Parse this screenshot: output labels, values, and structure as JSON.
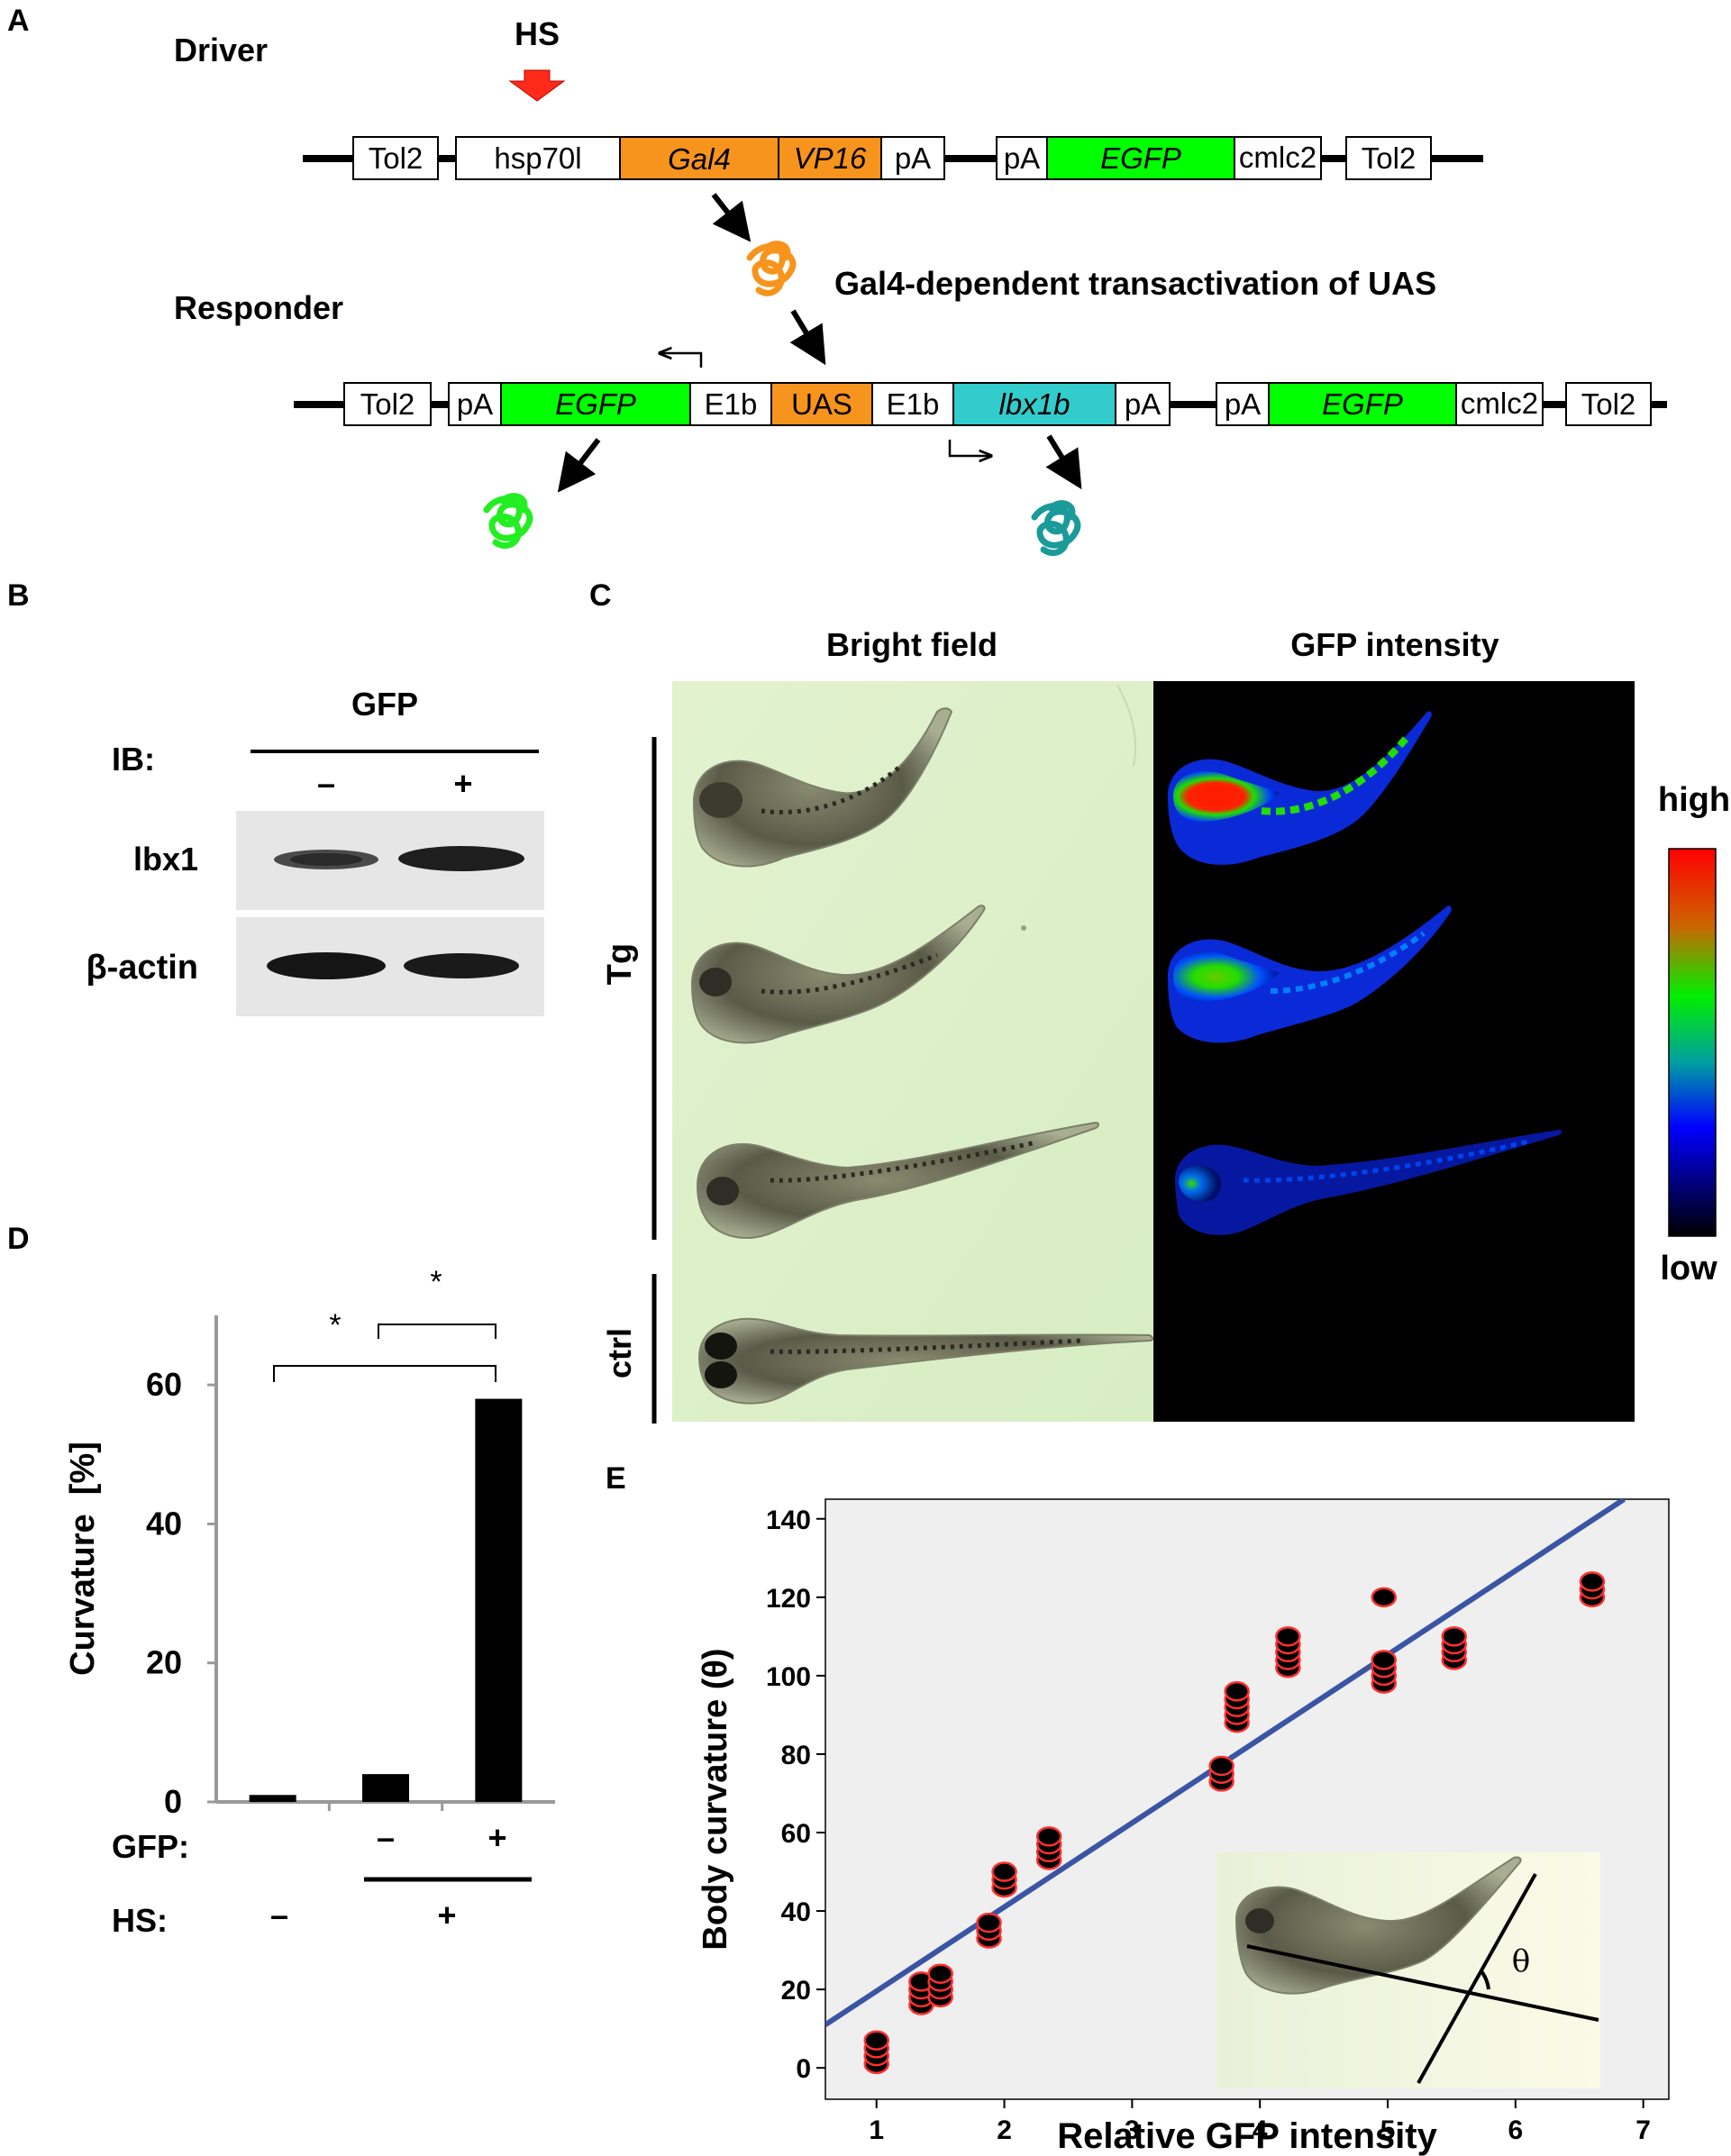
{
  "panelA": {
    "letter": "A",
    "driver_label": "Driver",
    "hs_label": "HS",
    "responder_label": "Responder",
    "transactivation_text": "Gal4-dependent transactivation of UAS",
    "driver_boxes": [
      "Tol2",
      "hsp70l",
      "Gal4",
      "VP16",
      "pA",
      "pA",
      "EGFP",
      "cmlc2",
      "Tol2"
    ],
    "responder_boxes": [
      "Tol2",
      "pA",
      "EGFP",
      "E1b",
      "UAS",
      "E1b",
      "lbx1b",
      "pA",
      "pA",
      "EGFP",
      "cmlc2",
      "Tol2"
    ],
    "colors": {
      "gal4": "#F7941D",
      "egfp": "#00FF00",
      "lbx1b": "#33CCCC",
      "hs_arrow": "#FF2A1A",
      "protein_teal": "#1B9A9A"
    }
  },
  "panelB": {
    "letter": "B",
    "gfp_label": "GFP",
    "ib_label": "IB:",
    "minus": "–",
    "plus": "+",
    "rows": [
      "lbx1",
      "β-actin"
    ]
  },
  "panelC": {
    "letter": "C",
    "col_bright": "Bright field",
    "col_gfp": "GFP intensity",
    "group_tg": "Tg",
    "group_ctrl": "ctrl",
    "scale_high": "high",
    "scale_low": "low"
  },
  "panelD": {
    "letter": "D",
    "sig_left": "*",
    "sig_right": "*",
    "gfp_row_label": "GFP:",
    "hs_row_label": "HS:",
    "gfp_values": [
      "",
      "–",
      "+"
    ],
    "hs_values": [
      "–",
      "+"
    ]
  },
  "panelE": {
    "letter": "E",
    "theta": "θ"
  },
  "chart_data": [
    {
      "type": "bar",
      "ylabel": "Curvature  [%]",
      "ylim": [
        0,
        70
      ],
      "yticks": [
        0,
        20,
        40,
        60
      ],
      "categories": [
        "HS– GFP",
        "HS+ GFP–",
        "HS+ GFP+"
      ],
      "values": [
        1,
        4,
        58
      ],
      "bar_color": "#000000"
    },
    {
      "type": "scatter",
      "xlabel": "Relative GFP intensity",
      "ylabel": "Body curvature (θ)",
      "xlim": [
        0.6,
        7.2
      ],
      "ylim": [
        -8,
        145
      ],
      "xticks": [
        1,
        2,
        3,
        4,
        5,
        6,
        7
      ],
      "yticks": [
        0,
        20,
        40,
        60,
        80,
        100,
        120,
        140
      ],
      "background": "#EFEFEF",
      "point_color": "#000000",
      "point_edge": "#FF3030",
      "fit_color": "#3A55A4",
      "fit_line": {
        "x0": 0.6,
        "y0": 11,
        "x1": 6.85,
        "y1": 145
      },
      "points": [
        {
          "x": 1.0,
          "y": 1
        },
        {
          "x": 1.0,
          "y": 3
        },
        {
          "x": 1.0,
          "y": 5
        },
        {
          "x": 1.0,
          "y": 7
        },
        {
          "x": 1.35,
          "y": 16
        },
        {
          "x": 1.35,
          "y": 18
        },
        {
          "x": 1.35,
          "y": 20
        },
        {
          "x": 1.35,
          "y": 22
        },
        {
          "x": 1.5,
          "y": 18
        },
        {
          "x": 1.5,
          "y": 20
        },
        {
          "x": 1.5,
          "y": 22
        },
        {
          "x": 1.5,
          "y": 24
        },
        {
          "x": 1.88,
          "y": 33
        },
        {
          "x": 1.88,
          "y": 35
        },
        {
          "x": 1.88,
          "y": 37
        },
        {
          "x": 2.0,
          "y": 46
        },
        {
          "x": 2.0,
          "y": 48
        },
        {
          "x": 2.0,
          "y": 50
        },
        {
          "x": 2.35,
          "y": 53
        },
        {
          "x": 2.35,
          "y": 55
        },
        {
          "x": 2.35,
          "y": 57
        },
        {
          "x": 2.35,
          "y": 59
        },
        {
          "x": 3.7,
          "y": 73
        },
        {
          "x": 3.7,
          "y": 75
        },
        {
          "x": 3.7,
          "y": 77
        },
        {
          "x": 3.82,
          "y": 88
        },
        {
          "x": 3.82,
          "y": 90
        },
        {
          "x": 3.82,
          "y": 92
        },
        {
          "x": 3.82,
          "y": 94
        },
        {
          "x": 3.82,
          "y": 96
        },
        {
          "x": 4.22,
          "y": 102
        },
        {
          "x": 4.22,
          "y": 104
        },
        {
          "x": 4.22,
          "y": 106
        },
        {
          "x": 4.22,
          "y": 108
        },
        {
          "x": 4.22,
          "y": 110
        },
        {
          "x": 4.97,
          "y": 98
        },
        {
          "x": 4.97,
          "y": 100
        },
        {
          "x": 4.97,
          "y": 102
        },
        {
          "x": 4.97,
          "y": 104
        },
        {
          "x": 4.97,
          "y": 120
        },
        {
          "x": 5.52,
          "y": 104
        },
        {
          "x": 5.52,
          "y": 106
        },
        {
          "x": 5.52,
          "y": 108
        },
        {
          "x": 5.52,
          "y": 110
        },
        {
          "x": 6.6,
          "y": 120
        },
        {
          "x": 6.6,
          "y": 122
        },
        {
          "x": 6.6,
          "y": 124
        }
      ]
    }
  ]
}
